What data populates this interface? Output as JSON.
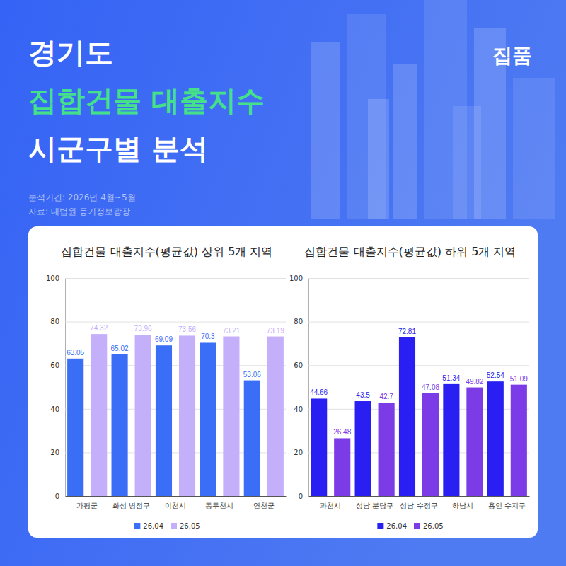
{
  "header": {
    "title": [
      "경기도",
      "집합건물 대출지수",
      "시군구별 분석"
    ],
    "brand": "집품",
    "period": "분석기간: 2026년 4월~5월",
    "source": "자료: 대법원 등기정보광장"
  },
  "chart_data": [
    {
      "type": "bar",
      "title": "집합건물 대출지수(평균값) 상위 5개 지역",
      "categories": [
        "가평군",
        "화성 병점구",
        "이천시",
        "동두천시",
        "연천군"
      ],
      "series": [
        {
          "name": "26.04",
          "color": "#3b6ef6",
          "values": [
            63.05,
            65.02,
            69.09,
            70.3,
            53.06
          ]
        },
        {
          "name": "26.05",
          "color": "#c4b0fa",
          "values": [
            74.32,
            73.96,
            73.56,
            73.21,
            73.19
          ]
        }
      ],
      "ylim": [
        0,
        100
      ],
      "yticks": [
        0,
        20,
        40,
        60,
        80,
        100
      ],
      "grid": true,
      "legend": "bottom",
      "data_labels": true
    },
    {
      "type": "bar",
      "title": "집합건물 대출지수(평균값) 하위 5개 지역",
      "categories": [
        "과천시",
        "성남 분당구",
        "성남 수정구",
        "하남시",
        "용인 수지구"
      ],
      "series": [
        {
          "name": "26.04",
          "color": "#2a1ff2",
          "values": [
            44.66,
            43.5,
            72.81,
            51.34,
            52.54
          ]
        },
        {
          "name": "26.05",
          "color": "#7b3be6",
          "values": [
            26.48,
            42.7,
            47.08,
            49.82,
            51.09
          ]
        }
      ],
      "ylim": [
        0,
        100
      ],
      "yticks": [
        0,
        20,
        40,
        60,
        80,
        100
      ],
      "grid": true,
      "legend": "bottom",
      "data_labels": true
    }
  ]
}
